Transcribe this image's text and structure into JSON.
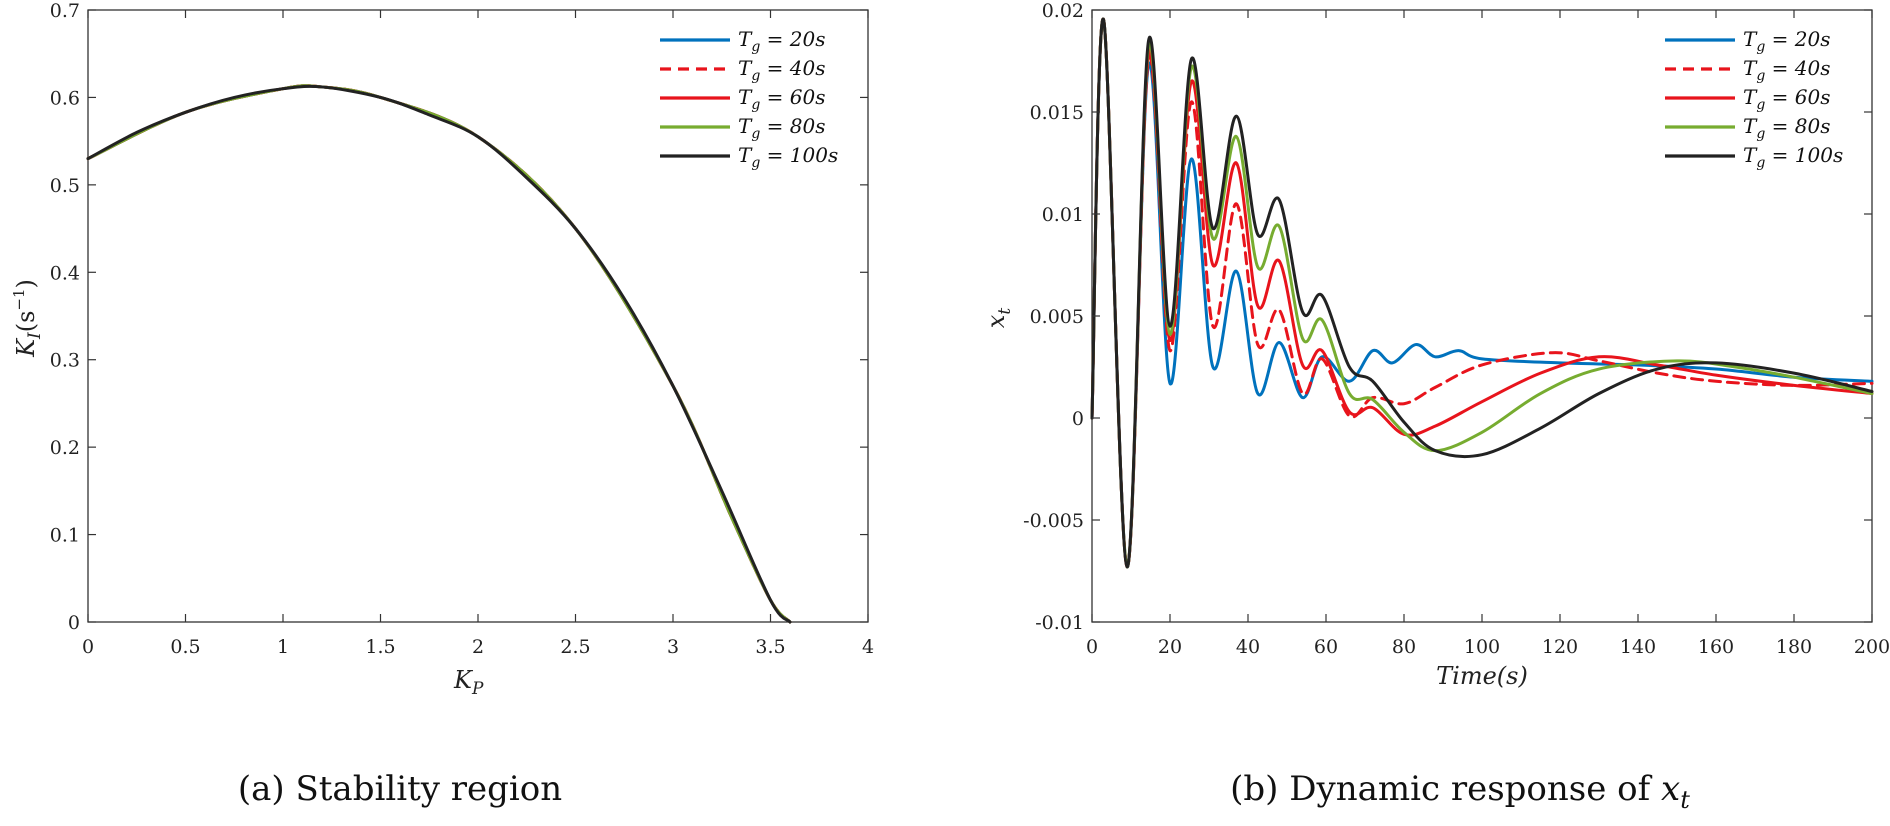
{
  "chart_data": [
    {
      "type": "line",
      "id": "a",
      "caption": "(a) Stability region",
      "xlabel_main": "K",
      "xlabel_sub": "P",
      "ylabel_main": "K",
      "ylabel_sub": "I",
      "ylabel_rest": "(s",
      "ylabel_sup": "−1",
      "ylabel_close": ")",
      "xlim": [
        0,
        4
      ],
      "ylim": [
        0,
        0.7
      ],
      "xticks": [
        0,
        0.5,
        1,
        1.5,
        2,
        2.5,
        3,
        3.5,
        4
      ],
      "xtick_labels": [
        "0",
        "0.5",
        "1",
        "1.5",
        "2",
        "2.5",
        "3",
        "3.5",
        "4"
      ],
      "yticks": [
        0,
        0.1,
        0.2,
        0.3,
        0.4,
        0.5,
        0.6,
        0.7
      ],
      "ytick_labels": [
        "0",
        "0.1",
        "0.2",
        "0.3",
        "0.4",
        "0.5",
        "0.6",
        "0.7"
      ],
      "legend_position": "top-right",
      "series": [
        {
          "name": "20s",
          "color": "#0072BD",
          "dash": false,
          "x": [
            0,
            0.5,
            1,
            1.2,
            1.5,
            2,
            2.5,
            3,
            3.3,
            3.5,
            3.6
          ],
          "y": [
            0.53,
            0.583,
            0.61,
            0.612,
            0.6,
            0.555,
            0.45,
            0.27,
            0.12,
            0.025,
            0
          ]
        },
        {
          "name": "40s",
          "color": "#E8141C",
          "dash": true,
          "x": [
            0,
            0.5,
            1,
            1.2,
            1.5,
            2,
            2.5,
            3,
            3.3,
            3.5,
            3.6
          ],
          "y": [
            0.53,
            0.583,
            0.61,
            0.612,
            0.6,
            0.555,
            0.45,
            0.27,
            0.12,
            0.025,
            0
          ]
        },
        {
          "name": "60s",
          "color": "#E8141C",
          "dash": false,
          "x": [
            0,
            0.5,
            1,
            1.2,
            1.5,
            2,
            2.5,
            3,
            3.3,
            3.5,
            3.6
          ],
          "y": [
            0.53,
            0.583,
            0.61,
            0.612,
            0.6,
            0.555,
            0.45,
            0.27,
            0.12,
            0.025,
            0
          ]
        },
        {
          "name": "80s",
          "color": "#77AC30",
          "dash": false,
          "x": [
            0,
            0.5,
            1,
            1.2,
            1.5,
            2,
            2.5,
            3,
            3.3,
            3.5,
            3.6
          ],
          "y": [
            0.53,
            0.583,
            0.61,
            0.612,
            0.6,
            0.555,
            0.45,
            0.27,
            0.12,
            0.025,
            0
          ]
        },
        {
          "name": "100s",
          "color": "#222222",
          "dash": false,
          "x": [
            0,
            0.25,
            0.5,
            0.75,
            1,
            1.2,
            1.5,
            1.75,
            2,
            2.25,
            2.5,
            2.75,
            3,
            3.25,
            3.5,
            3.6
          ],
          "y": [
            0.53,
            0.56,
            0.583,
            0.6,
            0.61,
            0.612,
            0.6,
            0.58,
            0.555,
            0.508,
            0.45,
            0.37,
            0.27,
            0.15,
            0.025,
            0
          ]
        }
      ]
    },
    {
      "type": "line",
      "id": "b",
      "caption_text": "(b) Dynamic response of ",
      "caption_var": "x",
      "caption_sub": "t",
      "xlabel": "Time(s)",
      "ylabel_main": "x",
      "ylabel_sub": "t",
      "xlim": [
        0,
        200
      ],
      "ylim": [
        -0.01,
        0.02
      ],
      "xticks": [
        0,
        20,
        40,
        60,
        80,
        100,
        120,
        140,
        160,
        180,
        200
      ],
      "xtick_labels": [
        "0",
        "20",
        "40",
        "60",
        "80",
        "100",
        "120",
        "140",
        "160",
        "180",
        "200"
      ],
      "yticks": [
        -0.01,
        -0.005,
        0,
        0.005,
        0.01,
        0.015,
        0.02
      ],
      "ytick_labels": [
        "-0.01",
        "-0.005",
        "0",
        "0.005",
        "0.01",
        "0.015",
        "0.02"
      ],
      "legend_position": "top-right",
      "series": [
        {
          "name": "20s",
          "color": "#0072BD",
          "dash": false,
          "x": [
            0,
            3,
            9,
            14.5,
            20,
            25.5,
            31,
            37,
            42.5,
            48,
            54,
            59,
            66,
            72,
            77,
            83,
            88,
            94,
            100,
            120,
            140,
            160,
            180,
            200
          ],
          "y": [
            0,
            0.0195,
            -0.0073,
            0.0173,
            0.0017,
            0.0127,
            0.0025,
            0.0072,
            0.0012,
            0.0037,
            0.001,
            0.003,
            0.0018,
            0.0033,
            0.0027,
            0.0036,
            0.003,
            0.0033,
            0.0029,
            0.0027,
            0.0026,
            0.0024,
            0.002,
            0.0018
          ]
        },
        {
          "name": "40s",
          "color": "#E8141C",
          "dash": true,
          "x": [
            0,
            3,
            9,
            14.5,
            20,
            25.5,
            31,
            37,
            42.5,
            48,
            54,
            59,
            66,
            72,
            80,
            88,
            100,
            118,
            130,
            145,
            160,
            180,
            200
          ],
          "y": [
            0,
            0.0195,
            -0.0073,
            0.0176,
            0.0033,
            0.0155,
            0.0045,
            0.0105,
            0.0036,
            0.0053,
            0.0012,
            0.0029,
            0.0001,
            0.001,
            0.0007,
            0.0015,
            0.0026,
            0.0032,
            0.0028,
            0.0022,
            0.0018,
            0.0016,
            0.0017
          ]
        },
        {
          "name": "60s",
          "color": "#E8141C",
          "dash": false,
          "x": [
            0,
            3,
            9,
            14.5,
            20,
            25.5,
            31,
            37,
            42.5,
            48,
            54,
            59,
            66,
            72,
            80,
            88,
            100,
            115,
            130,
            145,
            160,
            180,
            200
          ],
          "y": [
            0,
            0.0195,
            -0.0073,
            0.0179,
            0.0038,
            0.0165,
            0.0075,
            0.0125,
            0.0055,
            0.0077,
            0.0026,
            0.0033,
            0.0003,
            0.0005,
            -0.0008,
            -0.0004,
            0.0008,
            0.0022,
            0.003,
            0.0026,
            0.0021,
            0.0016,
            0.0012
          ]
        },
        {
          "name": "80s",
          "color": "#77AC30",
          "dash": false,
          "x": [
            0,
            3,
            9,
            14.5,
            20,
            25.5,
            31,
            37,
            42.5,
            48,
            54,
            59,
            66,
            72,
            80,
            88,
            100,
            115,
            130,
            150,
            165,
            180,
            200
          ],
          "y": [
            0,
            0.0195,
            -0.0073,
            0.0182,
            0.0041,
            0.0172,
            0.0088,
            0.0138,
            0.0074,
            0.0094,
            0.0039,
            0.0048,
            0.0012,
            0.0009,
            -0.0007,
            -0.0016,
            -0.0007,
            0.0012,
            0.0024,
            0.0028,
            0.0025,
            0.002,
            0.0012
          ]
        },
        {
          "name": "100s",
          "color": "#222222",
          "dash": false,
          "x": [
            0,
            3,
            9,
            14.5,
            20,
            25.5,
            31,
            37,
            42.5,
            48,
            54,
            59,
            66,
            72,
            80,
            88,
            100,
            115,
            130,
            145,
            160,
            180,
            200
          ],
          "y": [
            0,
            0.0195,
            -0.0073,
            0.0185,
            0.0045,
            0.0176,
            0.0093,
            0.0148,
            0.009,
            0.0107,
            0.0052,
            0.006,
            0.0025,
            0.0018,
            -0.0002,
            -0.0016,
            -0.0018,
            -0.0005,
            0.0012,
            0.0024,
            0.0027,
            0.0022,
            0.0013
          ]
        }
      ]
    }
  ]
}
